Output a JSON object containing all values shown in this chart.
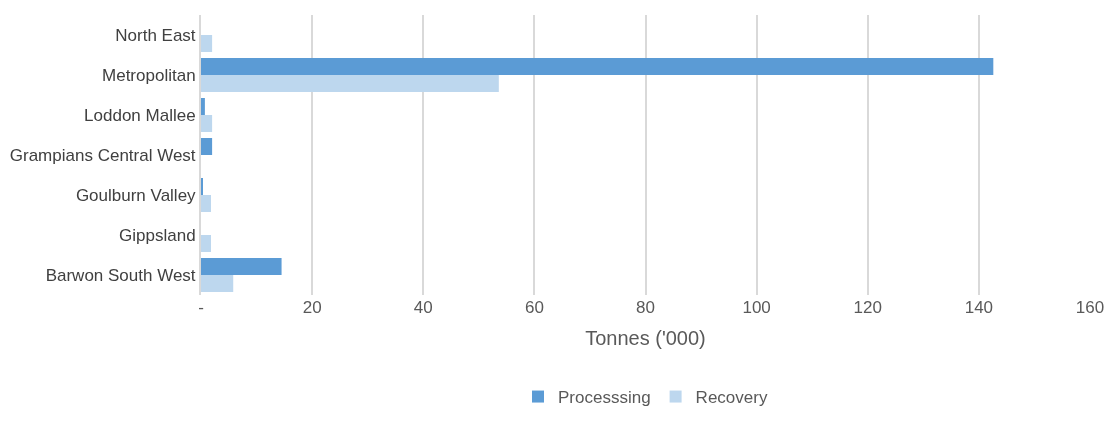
{
  "chart_data": {
    "type": "bar",
    "orientation": "horizontal",
    "xlabel": "Tonnes ('000)",
    "categories": [
      "North East",
      "Metropolitan",
      "Loddon Mallee",
      "Grampians Central West",
      "Goulburn Valley",
      "Gippsland",
      "Barwon South West"
    ],
    "series": [
      {
        "name": "Processsing",
        "color": "#5b9bd5",
        "values": [
          0,
          142.6,
          0.7,
          2.0,
          0.3,
          0,
          14.5
        ]
      },
      {
        "name": "Recovery",
        "color": "#bdd7ee",
        "values": [
          2.0,
          53.6,
          2.0,
          0,
          1.8,
          1.8,
          5.8
        ]
      }
    ],
    "xlim": [
      0,
      160
    ],
    "xticks": [
      {
        "value": 0,
        "label": "-"
      },
      20,
      40,
      60,
      80,
      100,
      120,
      140,
      160
    ],
    "grid": "x",
    "legend": "bottom"
  }
}
